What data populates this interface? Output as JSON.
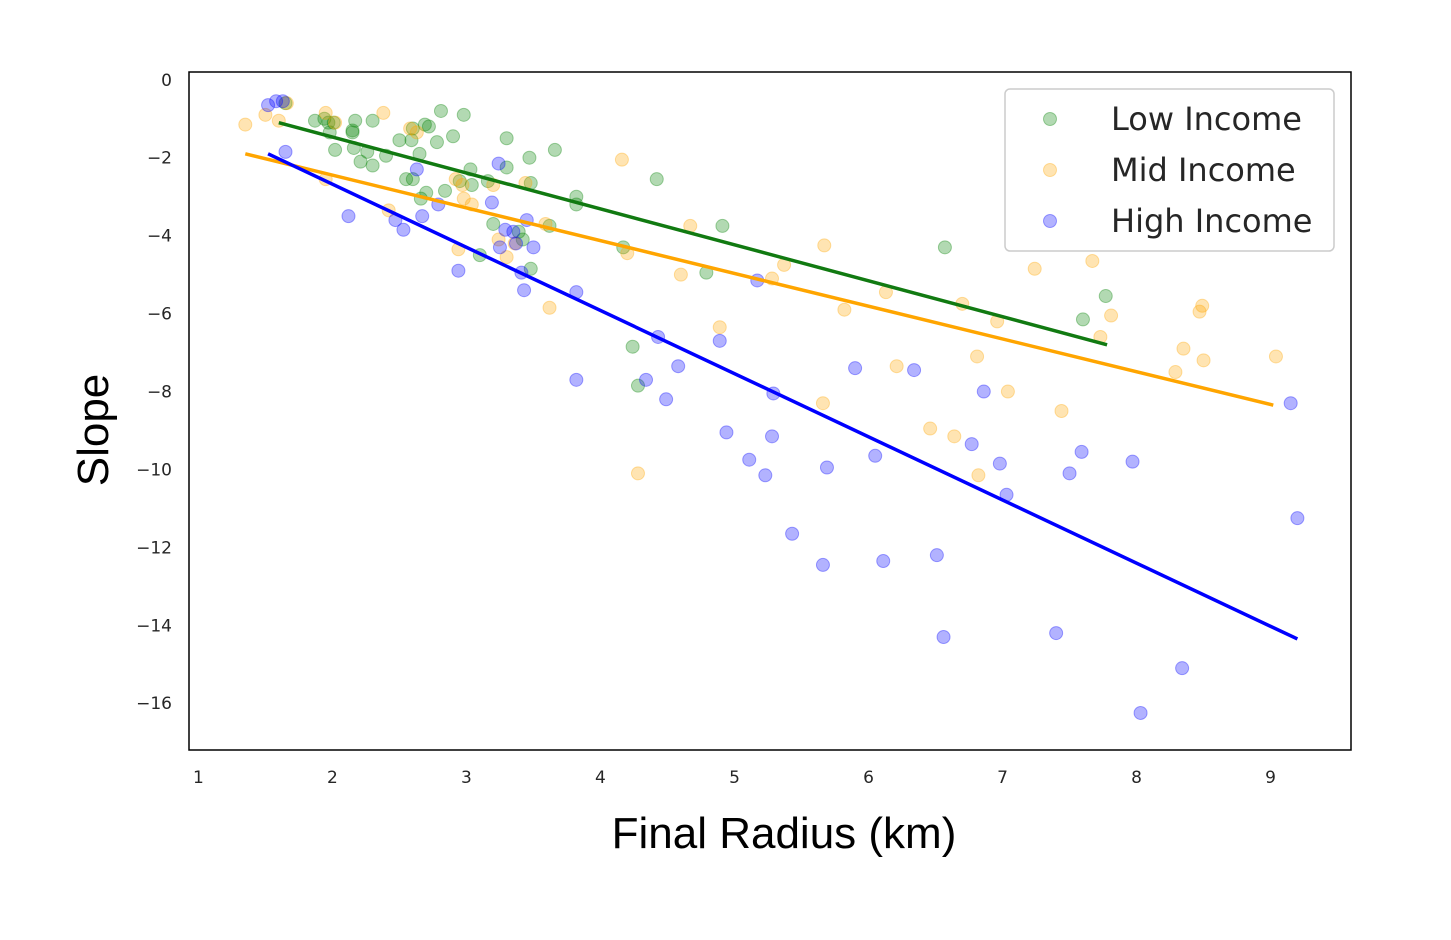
{
  "chart_data": {
    "type": "scatter",
    "title": "",
    "xlabel": "Final Radius (km)",
    "ylabel": "Slope",
    "xlim": [
      0.93,
      9.6
    ],
    "ylim": [
      -17.2,
      0.2
    ],
    "xticks": [
      1,
      2,
      3,
      4,
      5,
      6,
      7,
      8,
      9
    ],
    "yticks": [
      0,
      -2,
      -4,
      -6,
      -8,
      -10,
      -12,
      -14,
      -16
    ],
    "xtick_labels": [
      "1",
      "2",
      "3",
      "4",
      "5",
      "6",
      "7",
      "8",
      "9"
    ],
    "ytick_labels": [
      "0",
      "−2",
      "−4",
      "−6",
      "−8",
      "−10",
      "−12",
      "−14",
      "−16"
    ],
    "grid": false,
    "legend_position": "top-right",
    "series": [
      {
        "name": "Low Income",
        "color": "#008000",
        "line_color": "#117a11",
        "fit": {
          "x": [
            1.6,
            7.78
          ],
          "y": [
            -1.1,
            -6.8
          ]
        },
        "points": [
          [
            1.65,
            -0.6
          ],
          [
            1.87,
            -1.05
          ],
          [
            1.94,
            -1.0
          ],
          [
            1.97,
            -1.1
          ],
          [
            2.01,
            -1.1
          ],
          [
            2.02,
            -1.8
          ],
          [
            1.98,
            -1.35
          ],
          [
            2.15,
            -1.3
          ],
          [
            2.15,
            -1.35
          ],
          [
            2.17,
            -1.05
          ],
          [
            2.16,
            -1.75
          ],
          [
            2.21,
            -2.1
          ],
          [
            2.26,
            -1.85
          ],
          [
            2.3,
            -1.05
          ],
          [
            2.3,
            -2.2
          ],
          [
            2.4,
            -1.95
          ],
          [
            2.5,
            -1.55
          ],
          [
            2.55,
            -2.55
          ],
          [
            2.59,
            -1.55
          ],
          [
            2.6,
            -2.55
          ],
          [
            2.6,
            -1.25
          ],
          [
            2.65,
            -1.9
          ],
          [
            2.66,
            -3.05
          ],
          [
            2.69,
            -1.15
          ],
          [
            2.72,
            -1.2
          ],
          [
            2.7,
            -2.9
          ],
          [
            2.78,
            -1.6
          ],
          [
            2.81,
            -0.8
          ],
          [
            2.84,
            -2.85
          ],
          [
            2.9,
            -1.45
          ],
          [
            2.98,
            -0.9
          ],
          [
            2.95,
            -2.6
          ],
          [
            3.03,
            -2.3
          ],
          [
            3.04,
            -2.7
          ],
          [
            3.1,
            -4.5
          ],
          [
            3.16,
            -2.6
          ],
          [
            3.2,
            -3.7
          ],
          [
            3.3,
            -1.5
          ],
          [
            3.3,
            -2.25
          ],
          [
            3.39,
            -3.9
          ],
          [
            3.42,
            -4.1
          ],
          [
            3.47,
            -2.0
          ],
          [
            3.48,
            -2.65
          ],
          [
            3.48,
            -4.85
          ],
          [
            3.62,
            -3.75
          ],
          [
            3.66,
            -1.8
          ],
          [
            3.82,
            -3.0
          ],
          [
            3.82,
            -3.2
          ],
          [
            4.17,
            -4.3
          ],
          [
            4.24,
            -6.85
          ],
          [
            4.28,
            -7.85
          ],
          [
            4.42,
            -2.55
          ],
          [
            4.79,
            -4.95
          ],
          [
            4.91,
            -3.75
          ],
          [
            6.57,
            -4.3
          ],
          [
            7.6,
            -6.15
          ],
          [
            7.77,
            -5.55
          ]
        ]
      },
      {
        "name": "Mid Income",
        "color": "#ffa500",
        "line_color": "#ffa500",
        "fit": {
          "x": [
            1.35,
            9.02
          ],
          "y": [
            -1.9,
            -8.35
          ]
        },
        "points": [
          [
            1.35,
            -1.15
          ],
          [
            1.5,
            -0.9
          ],
          [
            1.6,
            -1.05
          ],
          [
            1.66,
            -0.6
          ],
          [
            1.95,
            -0.85
          ],
          [
            1.95,
            -2.55
          ],
          [
            2.02,
            -1.1
          ],
          [
            2.38,
            -0.85
          ],
          [
            2.42,
            -3.35
          ],
          [
            2.58,
            -1.25
          ],
          [
            2.63,
            -1.35
          ],
          [
            2.92,
            -2.55
          ],
          [
            2.94,
            -4.35
          ],
          [
            2.97,
            -2.7
          ],
          [
            2.98,
            -3.05
          ],
          [
            3.04,
            -3.2
          ],
          [
            3.2,
            -2.7
          ],
          [
            3.24,
            -4.1
          ],
          [
            3.3,
            -4.55
          ],
          [
            3.36,
            -4.2
          ],
          [
            3.44,
            -2.65
          ],
          [
            3.59,
            -3.7
          ],
          [
            3.62,
            -5.85
          ],
          [
            4.16,
            -2.05
          ],
          [
            4.2,
            -4.45
          ],
          [
            4.28,
            -10.1
          ],
          [
            4.6,
            -5.0
          ],
          [
            4.67,
            -3.75
          ],
          [
            4.89,
            -6.35
          ],
          [
            5.28,
            -5.1
          ],
          [
            5.37,
            -4.75
          ],
          [
            5.66,
            -8.3
          ],
          [
            5.67,
            -4.25
          ],
          [
            5.82,
            -5.9
          ],
          [
            6.13,
            -5.45
          ],
          [
            6.21,
            -7.35
          ],
          [
            6.46,
            -8.95
          ],
          [
            6.64,
            -9.15
          ],
          [
            6.7,
            -5.75
          ],
          [
            6.81,
            -7.1
          ],
          [
            6.82,
            -10.15
          ],
          [
            6.96,
            -6.2
          ],
          [
            7.04,
            -8.0
          ],
          [
            7.24,
            -4.85
          ],
          [
            7.44,
            -8.5
          ],
          [
            7.67,
            -4.65
          ],
          [
            7.73,
            -6.6
          ],
          [
            7.81,
            -6.05
          ],
          [
            8.29,
            -7.5
          ],
          [
            8.35,
            -6.9
          ],
          [
            8.47,
            -5.95
          ],
          [
            8.49,
            -5.8
          ],
          [
            8.5,
            -7.2
          ],
          [
            9.04,
            -7.1
          ]
        ]
      },
      {
        "name": "High Income",
        "color": "#0000ff",
        "line_color": "#0000ff",
        "fit": {
          "x": [
            1.52,
            9.2
          ],
          "y": [
            -1.9,
            -14.35
          ]
        },
        "points": [
          [
            1.52,
            -0.65
          ],
          [
            1.58,
            -0.55
          ],
          [
            1.63,
            -0.55
          ],
          [
            1.65,
            -1.85
          ],
          [
            2.12,
            -3.5
          ],
          [
            2.47,
            -3.6
          ],
          [
            2.53,
            -3.85
          ],
          [
            2.63,
            -2.3
          ],
          [
            2.67,
            -3.5
          ],
          [
            2.79,
            -3.2
          ],
          [
            2.94,
            -4.9
          ],
          [
            3.19,
            -3.15
          ],
          [
            3.24,
            -2.15
          ],
          [
            3.25,
            -4.3
          ],
          [
            3.29,
            -3.85
          ],
          [
            3.35,
            -3.9
          ],
          [
            3.37,
            -4.2
          ],
          [
            3.41,
            -4.95
          ],
          [
            3.43,
            -5.4
          ],
          [
            3.45,
            -3.6
          ],
          [
            3.5,
            -4.3
          ],
          [
            3.82,
            -7.7
          ],
          [
            3.82,
            -5.45
          ],
          [
            4.34,
            -7.7
          ],
          [
            4.43,
            -6.6
          ],
          [
            4.49,
            -8.2
          ],
          [
            4.58,
            -7.35
          ],
          [
            4.89,
            -6.7
          ],
          [
            4.94,
            -9.05
          ],
          [
            5.11,
            -9.75
          ],
          [
            5.17,
            -5.15
          ],
          [
            5.23,
            -10.15
          ],
          [
            5.28,
            -9.15
          ],
          [
            5.29,
            -8.05
          ],
          [
            5.43,
            -11.65
          ],
          [
            5.66,
            -12.45
          ],
          [
            5.69,
            -9.95
          ],
          [
            5.9,
            -7.4
          ],
          [
            6.05,
            -9.65
          ],
          [
            6.11,
            -12.35
          ],
          [
            6.34,
            -7.45
          ],
          [
            6.51,
            -12.2
          ],
          [
            6.56,
            -14.3
          ],
          [
            6.77,
            -9.35
          ],
          [
            6.86,
            -8.0
          ],
          [
            6.98,
            -9.85
          ],
          [
            7.03,
            -10.65
          ],
          [
            7.4,
            -14.2
          ],
          [
            7.5,
            -10.1
          ],
          [
            7.59,
            -9.55
          ],
          [
            7.97,
            -9.8
          ],
          [
            8.03,
            -16.25
          ],
          [
            8.34,
            -15.1
          ],
          [
            9.15,
            -8.3
          ],
          [
            9.2,
            -11.25
          ]
        ]
      }
    ]
  }
}
